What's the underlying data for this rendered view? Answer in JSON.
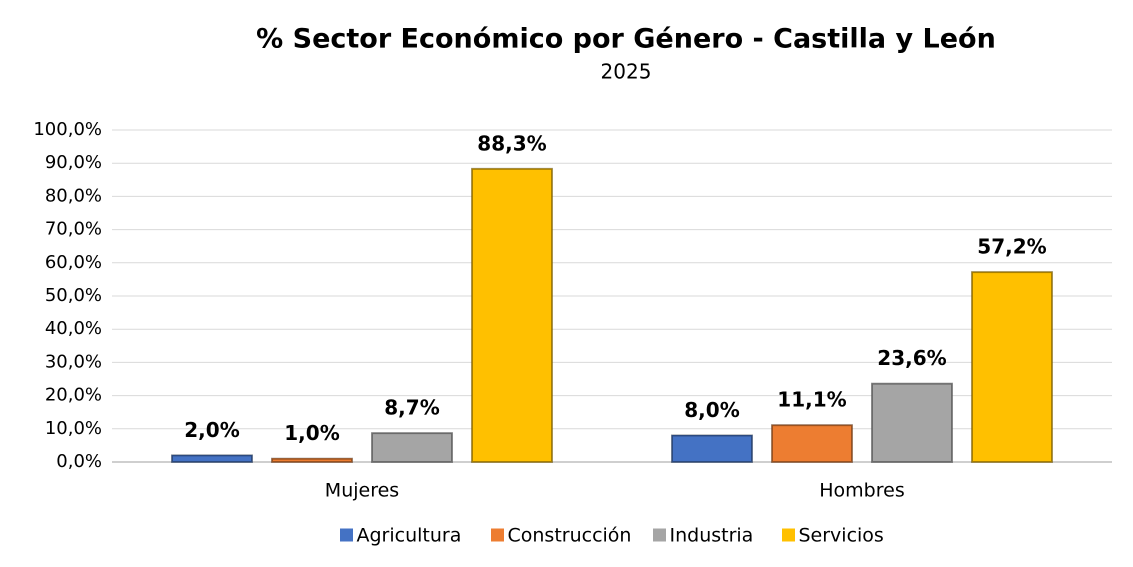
{
  "chart_data": {
    "type": "bar",
    "title": "% Sector Económico por Género - Castilla y León",
    "subtitle": "2025",
    "categories": [
      "Mujeres",
      "Hombres"
    ],
    "series": [
      {
        "name": "Agricultura",
        "color": "#4472c4",
        "values": [
          2.0,
          8.0
        ],
        "value_labels": [
          "2,0%",
          "8,0%"
        ]
      },
      {
        "name": "Construcción",
        "color": "#ed7d31",
        "values": [
          1.0,
          11.1
        ],
        "value_labels": [
          "1,0%",
          "11,1%"
        ]
      },
      {
        "name": "Industria",
        "color": "#a5a5a5",
        "values": [
          8.7,
          23.6
        ],
        "value_labels": [
          "8,7%",
          "23,6%"
        ]
      },
      {
        "name": "Servicios",
        "color": "#ffc000",
        "values": [
          88.3,
          57.2
        ],
        "value_labels": [
          "88,3%",
          "57,2%"
        ]
      }
    ],
    "ylim": [
      0,
      100
    ],
    "yticks": [
      {
        "value": 0,
        "label": "0,0%"
      },
      {
        "value": 10,
        "label": "10,0%"
      },
      {
        "value": 20,
        "label": "20,0%"
      },
      {
        "value": 30,
        "label": "30,0%"
      },
      {
        "value": 40,
        "label": "40,0%"
      },
      {
        "value": 50,
        "label": "50,0%"
      },
      {
        "value": 60,
        "label": "60,0%"
      },
      {
        "value": 70,
        "label": "70,0%"
      },
      {
        "value": 80,
        "label": "80,0%"
      },
      {
        "value": 90,
        "label": "90,0%"
      },
      {
        "value": 100,
        "label": "100,0%"
      }
    ],
    "grid": true,
    "legend": "bottom"
  }
}
